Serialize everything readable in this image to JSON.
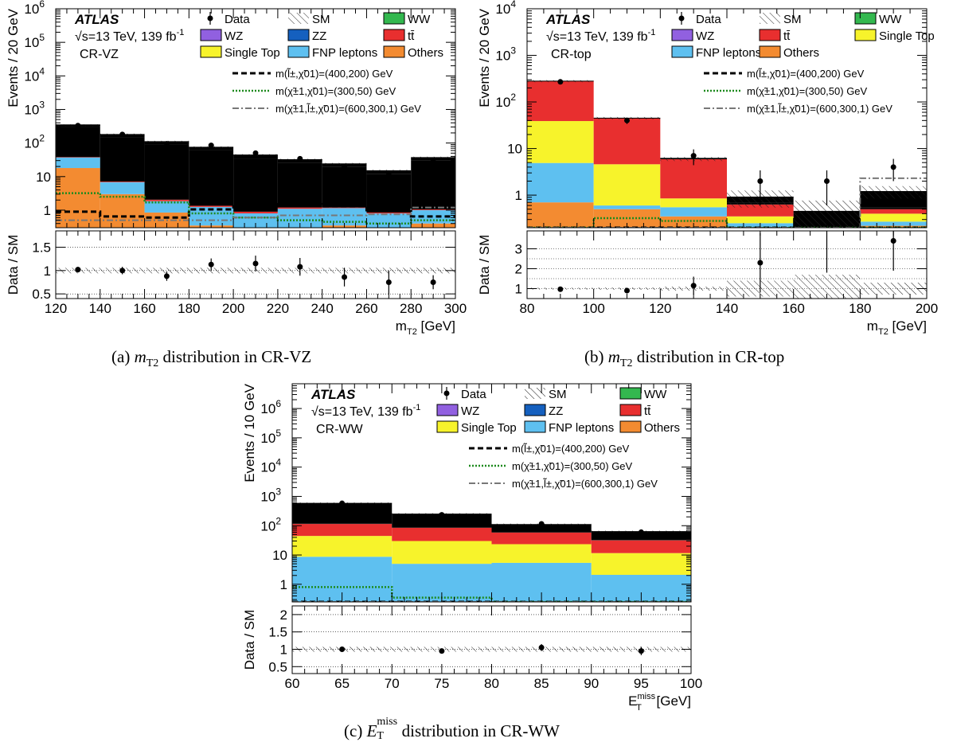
{
  "colors": {
    "WW": "#33b84f",
    "WZ": "#9160e0",
    "ZZ": "#1560bf",
    "ttbar": "#e82f2f",
    "single_top": "#f7f32b",
    "fnp": "#5ec0f0",
    "others": "#f38b31",
    "signal_slepton": "#000000",
    "signal_c1c1": "#1e8a1e",
    "signal_c1l": "#777777"
  },
  "legend_labels": {
    "data": "Data",
    "sm": "SM",
    "ww": "WW",
    "wz": "WZ",
    "zz": "ZZ",
    "ttbar": "tt̄",
    "single_top": "Single Top",
    "fnp": "FNP leptons",
    "others": "Others",
    "sig1_pre": "m(",
    "sig1_mid": "l̃",
    "sig1_sup": "±",
    "sig1_b": ",χ̃",
    "sig1_sup2": "0",
    "sig1_sub2": "1",
    "sig1_post": ")=(400,200) GeV",
    "sig2_text": "m(χ̃±1,χ̃01)=(300,50) GeV",
    "sig3_text": "m(χ̃±1,l̃±,χ̃01)=(600,300,1) GeV"
  },
  "chart_data": [
    {
      "id": "a",
      "type": "bar",
      "atlas_label": "ATLAS",
      "energy_label": "√s=13 TeV, 139 fb",
      "energy_sup": "-1",
      "region": "CR-VZ",
      "ylabel": "Events / 20 GeV",
      "ratio_ylabel": "Data / SM",
      "xlabel": "m",
      "xlabel_sub": "T2",
      "xlabel_unit": " [GeV]",
      "log_y": true,
      "ylim": [
        0.3,
        1000000
      ],
      "yticks": [
        {
          "v": 1,
          "label": "1"
        },
        {
          "v": 10,
          "label": "10"
        },
        {
          "v": 100,
          "label": "10",
          "sup": "2"
        },
        {
          "v": 1000,
          "label": "10",
          "sup": "3"
        },
        {
          "v": 10000,
          "label": "10",
          "sup": "4"
        },
        {
          "v": 100000,
          "label": "10",
          "sup": "5"
        },
        {
          "v": 1000000,
          "label": "10",
          "sup": "6"
        }
      ],
      "ratio_ylim": [
        0.4,
        1.85
      ],
      "ratio_yticks": [
        {
          "v": 0.5,
          "label": "0.5"
        },
        {
          "v": 1,
          "label": "1"
        },
        {
          "v": 1.5,
          "label": "1.5"
        }
      ],
      "ratio_gridlines": [
        0.5,
        1,
        1.5
      ],
      "bin_edges": [
        120,
        140,
        160,
        180,
        200,
        220,
        240,
        260,
        280,
        300
      ],
      "xticks": [
        120,
        140,
        160,
        180,
        200,
        220,
        240,
        260,
        280,
        300
      ],
      "legend_order": [
        "data",
        "sm",
        "ww",
        "wz",
        "zz",
        "ttbar",
        "single_top",
        "fnp",
        "others"
      ],
      "stack": [
        {
          "name": "Others",
          "key": "others",
          "values": [
            18,
            3,
            0.85,
            0.35,
            0.3,
            0.3,
            0.35,
            0.3,
            0.4
          ]
        },
        {
          "name": "FNP leptons",
          "key": "fnp",
          "values": [
            19,
            3.8,
            1.0,
            0.9,
            0.5,
            0.8,
            0.8,
            0.5,
            0.6
          ]
        },
        {
          "name": "Single Top",
          "key": "single_top",
          "values": [
            0,
            0,
            0,
            0,
            0,
            0,
            0,
            0,
            0
          ]
        },
        {
          "name": "tt̄",
          "key": "ttbar",
          "values": [
            1,
            0.3,
            0.2,
            0.1,
            0.1,
            0.1,
            0.05,
            0.05,
            0.05
          ]
        },
        {
          "name": "ZZ",
          "key": "zz",
          "values": [
            270,
            140,
            88,
            60,
            33,
            24,
            18,
            11,
            29
          ]
        },
        {
          "name": "WZ",
          "key": "wz",
          "values": [
            50,
            35,
            20,
            14,
            10,
            7,
            4.5,
            3,
            7
          ]
        },
        {
          "name": "WW",
          "key": "ww",
          "values": [
            0,
            0,
            0,
            0,
            0,
            0,
            0,
            0,
            0
          ]
        }
      ],
      "sm_total": [
        340,
        180,
        110,
        75,
        44,
        32,
        24,
        15,
        37
      ],
      "signals": [
        {
          "key": "signal_slepton",
          "style": "dashed",
          "values": [
            0.9,
            0.65,
            0.6,
            1.05,
            1.3,
            1.5,
            1.3,
            1.0,
            0.65
          ]
        },
        {
          "key": "signal_c1c1",
          "style": "dotted",
          "values": [
            3.2,
            2.5,
            1.7,
            0.8,
            0.6,
            0.5,
            0.45,
            0.4,
            0.5
          ]
        },
        {
          "key": "signal_c1l",
          "style": "dashdot",
          "values": [
            0.5,
            0.5,
            0.5,
            0.5,
            0.6,
            0.7,
            0.7,
            0.75,
            1.2
          ]
        }
      ],
      "data": [
        {
          "x": 130,
          "y": 330,
          "err": 18
        },
        {
          "x": 150,
          "y": 180,
          "err": 13
        },
        {
          "x": 170,
          "y": 95,
          "err": 10
        },
        {
          "x": 190,
          "y": 85,
          "err": 9
        },
        {
          "x": 210,
          "y": 50,
          "err": 7
        },
        {
          "x": 230,
          "y": 34,
          "err": 6
        },
        {
          "x": 250,
          "y": 19,
          "err": 4.4
        },
        {
          "x": 270,
          "y": 11,
          "err": 3.3
        },
        {
          "x": 290,
          "y": 28,
          "err": 5.3
        }
      ],
      "ratio": [
        {
          "x": 130,
          "y": 1.02,
          "err": 0.06
        },
        {
          "x": 150,
          "y": 1.0,
          "err": 0.08
        },
        {
          "x": 170,
          "y": 0.88,
          "err": 0.1
        },
        {
          "x": 190,
          "y": 1.13,
          "err": 0.13
        },
        {
          "x": 210,
          "y": 1.15,
          "err": 0.17
        },
        {
          "x": 230,
          "y": 1.08,
          "err": 0.19
        },
        {
          "x": 250,
          "y": 0.86,
          "err": 0.2
        },
        {
          "x": 270,
          "y": 0.75,
          "err": 0.25
        },
        {
          "x": 290,
          "y": 0.75,
          "err": 0.15
        }
      ],
      "ratio_band": [
        0.06,
        0.06,
        0.06,
        0.06,
        0.06,
        0.06,
        0.06,
        0.06,
        0.06
      ]
    },
    {
      "id": "b",
      "type": "bar",
      "atlas_label": "ATLAS",
      "energy_label": "√s=13 TeV, 139 fb",
      "energy_sup": "-1",
      "region": "CR-top",
      "ylabel": "Events / 20 GeV",
      "ratio_ylabel": "Data / SM",
      "xlabel": "m",
      "xlabel_sub": "T2",
      "xlabel_unit": " [GeV]",
      "log_y": true,
      "ylim": [
        0.2,
        10000
      ],
      "yticks": [
        {
          "v": 1,
          "label": "1"
        },
        {
          "v": 10,
          "label": "10"
        },
        {
          "v": 100,
          "label": "10",
          "sup": "2"
        },
        {
          "v": 1000,
          "label": "10",
          "sup": "3"
        },
        {
          "v": 10000,
          "label": "10",
          "sup": "4"
        }
      ],
      "ratio_ylim": [
        0.5,
        3.9
      ],
      "ratio_yticks": [
        {
          "v": 1,
          "label": "1"
        },
        {
          "v": 2,
          "label": "2"
        },
        {
          "v": 3,
          "label": "3"
        }
      ],
      "ratio_gridlines": [
        1,
        1.5,
        2,
        2.5,
        3
      ],
      "bin_edges": [
        80,
        100,
        120,
        140,
        160,
        180,
        200
      ],
      "xticks": [
        80,
        100,
        120,
        140,
        160,
        180,
        200
      ],
      "legend_order": [
        "data",
        "sm",
        "ww",
        "wz",
        "ttbar",
        "single_top",
        "fnp",
        "others"
      ],
      "stack": [
        {
          "name": "Others",
          "key": "others",
          "values": [
            0.7,
            0.5,
            0.35,
            0.2,
            0.2,
            0.22
          ]
        },
        {
          "name": "FNP leptons",
          "key": "fnp",
          "values": [
            4.2,
            0.1,
            0.2,
            0.05,
            0.0,
            0.05
          ]
        },
        {
          "name": "Single Top",
          "key": "single_top",
          "values": [
            34,
            4.0,
            0.3,
            0.1,
            0.0,
            0.13
          ]
        },
        {
          "name": "tt̄",
          "key": "ttbar",
          "values": [
            240,
            40,
            5.2,
            0.28,
            0.0,
            0.1
          ]
        },
        {
          "name": "ZZ",
          "key": "zz",
          "values": [
            0,
            0,
            0,
            0,
            0,
            0
          ]
        },
        {
          "name": "WZ",
          "key": "wz",
          "values": [
            0.1,
            0.05,
            0.05,
            0.05,
            0.0,
            0.05
          ]
        },
        {
          "name": "WW",
          "key": "ww",
          "values": [
            2,
            0.6,
            0.2,
            0.25,
            0.25,
            0.65
          ]
        }
      ],
      "sm_total": [
        280,
        45,
        6,
        0.9,
        0.45,
        1.2
      ],
      "signals": [
        {
          "key": "signal_slepton",
          "style": "dashed",
          "values": [
            0.1,
            0.1,
            0.1,
            0.1,
            0.1,
            0.1
          ]
        },
        {
          "key": "signal_c1c1",
          "style": "dotted",
          "values": [
            0.1,
            0.32,
            0.28,
            0.1,
            0.1,
            0.1
          ]
        },
        {
          "key": "signal_c1l",
          "style": "dashdot",
          "values": [
            0.1,
            0.1,
            0.1,
            0.1,
            0.1,
            2.3
          ]
        }
      ],
      "data": [
        {
          "x": 90,
          "y": 270,
          "err": 16
        },
        {
          "x": 110,
          "y": 40,
          "err": 6.3
        },
        {
          "x": 130,
          "y": 7,
          "err": 2.6
        },
        {
          "x": 150,
          "y": 2,
          "err": 1.4
        },
        {
          "x": 170,
          "y": 2,
          "err": 1.4
        },
        {
          "x": 190,
          "y": 4,
          "err": 2
        }
      ],
      "ratio": [
        {
          "x": 90,
          "y": 0.97,
          "err": 0.06
        },
        {
          "x": 110,
          "y": 0.9,
          "err": 0.14
        },
        {
          "x": 130,
          "y": 1.15,
          "err": 0.45
        },
        {
          "x": 150,
          "y": 2.3,
          "err": 1.5
        },
        {
          "x": 170,
          "y": 4.4,
          "err": 2.6
        },
        {
          "x": 190,
          "y": 3.4,
          "err": 1.5
        }
      ],
      "ratio_band": [
        0.05,
        0.06,
        0.1,
        0.4,
        0.7,
        0.3
      ]
    },
    {
      "id": "c",
      "type": "bar",
      "atlas_label": "ATLAS",
      "energy_label": "√s=13 TeV, 139 fb",
      "energy_sup": "-1",
      "region": "CR-WW",
      "ylabel": "Events / 10 GeV",
      "ratio_ylabel": "Data / SM",
      "xlabel": "E",
      "xlabel_sub": "T",
      "xlabel_sup": "miss",
      "xlabel_unit": " [GeV]",
      "log_y": true,
      "ylim": [
        0.25,
        7000000
      ],
      "yticks": [
        {
          "v": 1,
          "label": "1"
        },
        {
          "v": 10,
          "label": "10"
        },
        {
          "v": 100,
          "label": "10",
          "sup": "2"
        },
        {
          "v": 1000,
          "label": "10",
          "sup": "3"
        },
        {
          "v": 10000,
          "label": "10",
          "sup": "4"
        },
        {
          "v": 100000,
          "label": "10",
          "sup": "5"
        },
        {
          "v": 1000000,
          "label": "10",
          "sup": "6"
        }
      ],
      "ratio_ylim": [
        0.3,
        2.25
      ],
      "ratio_yticks": [
        {
          "v": 0.5,
          "label": "0.5"
        },
        {
          "v": 1,
          "label": "1"
        },
        {
          "v": 1.5,
          "label": "1.5"
        },
        {
          "v": 2,
          "label": "2"
        }
      ],
      "ratio_gridlines": [
        0.5,
        1,
        1.5,
        2
      ],
      "bin_edges": [
        60,
        70,
        80,
        90,
        100
      ],
      "xticks": [
        60,
        65,
        70,
        75,
        80,
        85,
        90,
        95,
        100
      ],
      "legend_order": [
        "data",
        "sm",
        "ww",
        "wz",
        "zz",
        "ttbar",
        "single_top",
        "fnp",
        "others"
      ],
      "stack": [
        {
          "name": "Others",
          "key": "others",
          "values": [
            0.2,
            0.1,
            0.1,
            0.1
          ]
        },
        {
          "name": "FNP leptons",
          "key": "fnp",
          "values": [
            8.5,
            4.9,
            5.3,
            2.0
          ]
        },
        {
          "name": "Single Top",
          "key": "single_top",
          "values": [
            36,
            25,
            18,
            9.5
          ]
        },
        {
          "name": "tt̄",
          "key": "ttbar",
          "values": [
            70,
            55,
            35,
            20
          ]
        },
        {
          "name": "ZZ",
          "key": "zz",
          "values": [
            0.3,
            0.2,
            0.2,
            0.1
          ]
        },
        {
          "name": "WZ",
          "key": "wz",
          "values": [
            2,
            1.5,
            1,
            0.8
          ]
        },
        {
          "name": "WW",
          "key": "ww",
          "values": [
            460,
            160,
            50,
            30
          ]
        }
      ],
      "sm_total": [
        580,
        250,
        110,
        63
      ],
      "signals": [
        {
          "key": "signal_slepton",
          "style": "dashed",
          "values": [
            0.1,
            0.1,
            0.1,
            0.1
          ]
        },
        {
          "key": "signal_c1c1",
          "style": "dotted",
          "values": [
            0.8,
            0.35,
            0.1,
            0.1
          ]
        },
        {
          "key": "signal_c1l",
          "style": "dashdot",
          "values": [
            0.1,
            0.1,
            0.1,
            0.1
          ]
        }
      ],
      "data": [
        {
          "x": 65,
          "y": 580,
          "err": 24
        },
        {
          "x": 75,
          "y": 235,
          "err": 15
        },
        {
          "x": 85,
          "y": 115,
          "err": 11
        },
        {
          "x": 95,
          "y": 60,
          "err": 8
        }
      ],
      "ratio": [
        {
          "x": 65,
          "y": 1.0,
          "err": 0.04
        },
        {
          "x": 75,
          "y": 0.95,
          "err": 0.06
        },
        {
          "x": 85,
          "y": 1.05,
          "err": 0.1
        },
        {
          "x": 95,
          "y": 0.95,
          "err": 0.12
        }
      ],
      "ratio_band": [
        0.07,
        0.07,
        0.07,
        0.07
      ]
    }
  ],
  "captions": [
    {
      "prefix": "(a) ",
      "var": "m",
      "sub": "T2",
      "sup": "",
      "suffix": " distribution in CR-VZ"
    },
    {
      "prefix": "(b) ",
      "var": "m",
      "sub": "T2",
      "sup": "",
      "suffix": " distribution in CR-top"
    },
    {
      "prefix": "(c) ",
      "var": "E",
      "sub": "T",
      "sup": "miss",
      "suffix": " distribution in CR-WW"
    }
  ]
}
